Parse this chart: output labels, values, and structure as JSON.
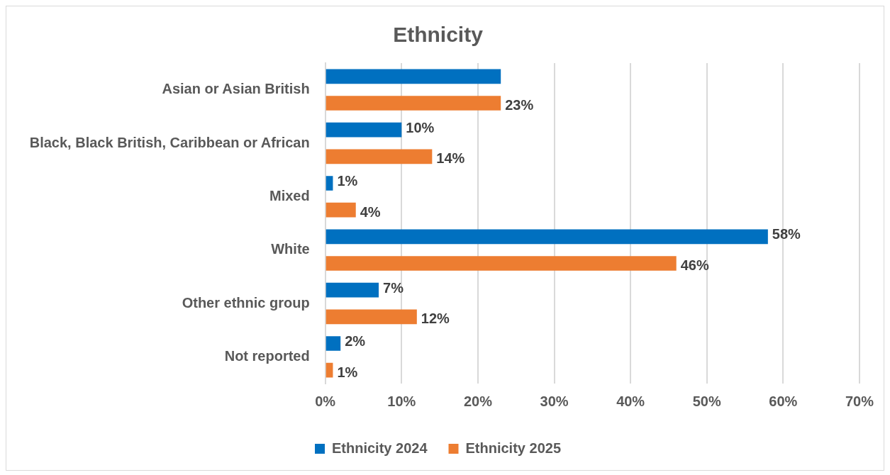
{
  "chart_data": {
    "type": "bar",
    "orientation": "horizontal",
    "title": "Ethnicity",
    "categories": [
      "Asian or Asian British",
      "Black, Black British, Caribbean or African",
      "Mixed",
      "White",
      "Other ethnic group",
      "Not reported"
    ],
    "series": [
      {
        "name": "Ethnicity 2024",
        "color": "#0070c0",
        "values": [
          23,
          10,
          1,
          58,
          7,
          2
        ],
        "value_labels": [
          null,
          "10%",
          "1%",
          "58%",
          "7%",
          "2%"
        ]
      },
      {
        "name": "Ethnicity 2025",
        "color": "#ed7d31",
        "values": [
          23,
          14,
          4,
          46,
          12,
          1
        ],
        "value_labels": [
          "23%",
          "14%",
          "4%",
          "46%",
          "12%",
          "1%"
        ]
      }
    ],
    "xlim": [
      0,
      70
    ],
    "xticks": [
      {
        "value": 0,
        "label": "0%"
      },
      {
        "value": 10,
        "label": "10%"
      },
      {
        "value": 20,
        "label": "20%"
      },
      {
        "value": 30,
        "label": "30%"
      },
      {
        "value": 40,
        "label": "40%"
      },
      {
        "value": 50,
        "label": "50%"
      },
      {
        "value": 60,
        "label": "60%"
      },
      {
        "value": 70,
        "label": "70%"
      }
    ],
    "grid": "x",
    "legend": "bottom"
  }
}
